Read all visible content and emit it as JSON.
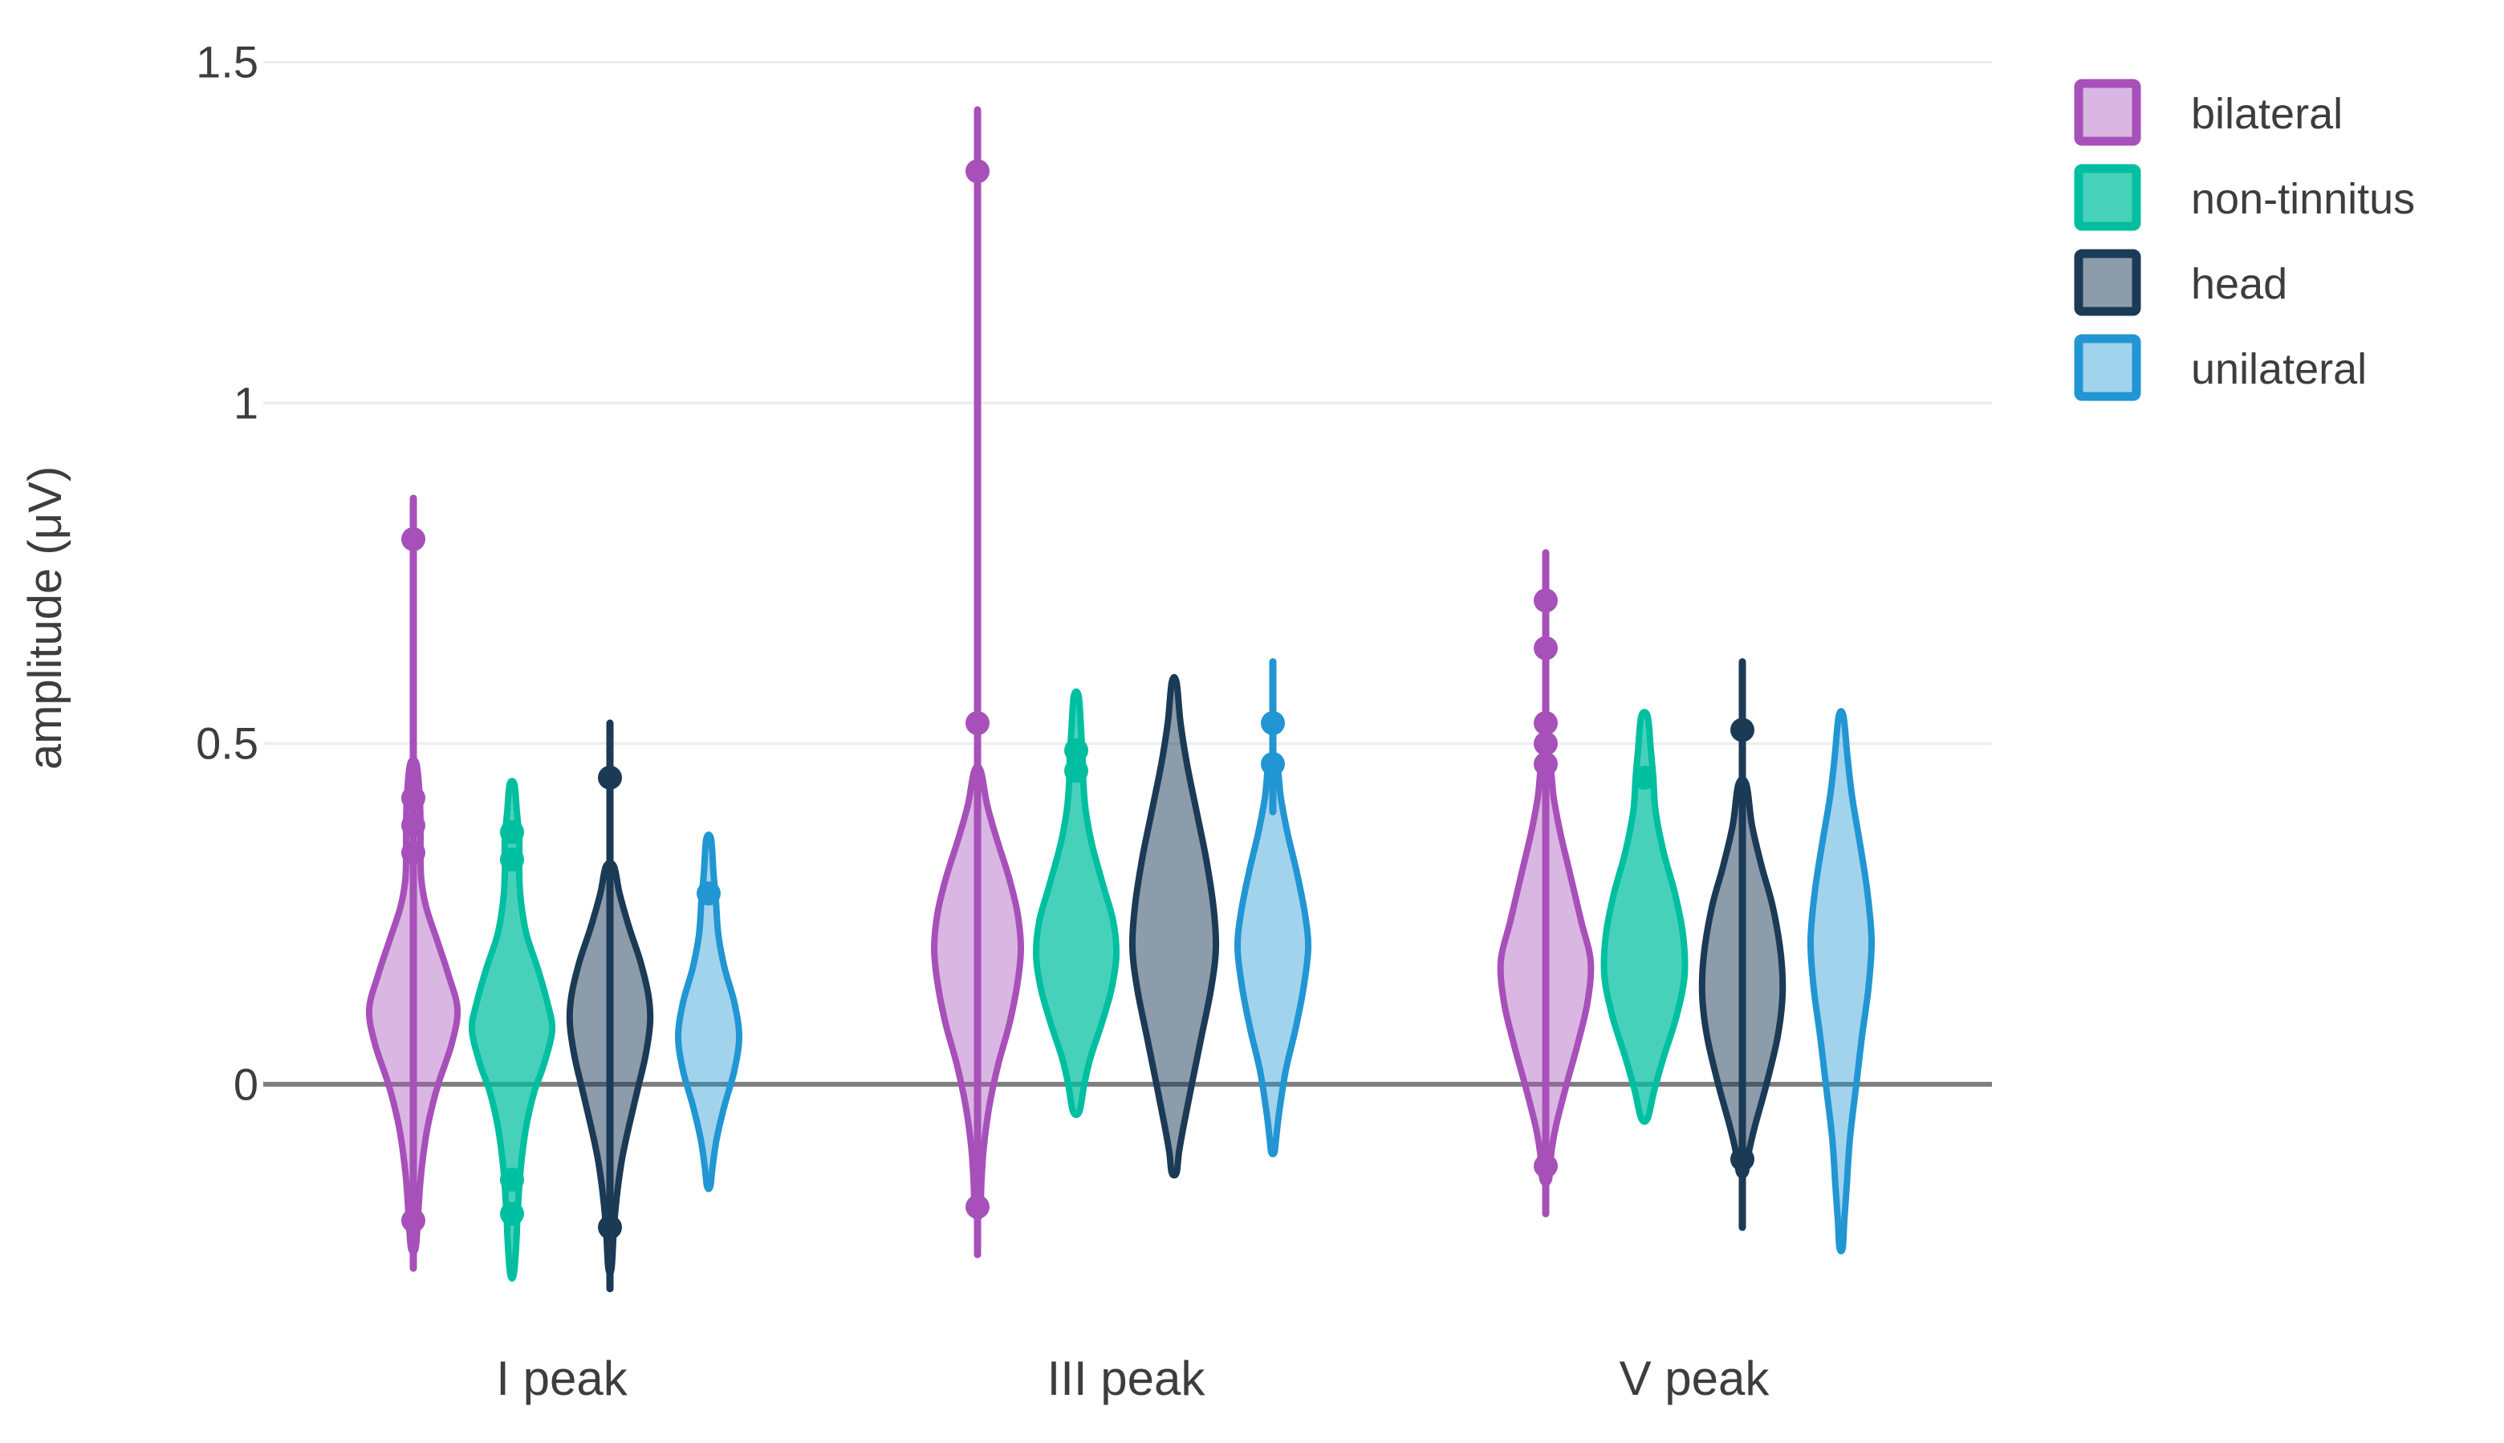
{
  "page": {
    "background": "#ffffff"
  },
  "chart_data": {
    "type": "violin",
    "title": "",
    "ylabel": "amplitude (μV)",
    "xlabel": "",
    "categories": [
      "I peak",
      "III peak",
      "V peak"
    ],
    "grid": true,
    "legend_position": "top-right",
    "ylim": [
      -0.35,
      1.55
    ],
    "zero_line": true,
    "yticks": [
      {
        "value": 1.5,
        "label": "1.5"
      },
      {
        "value": 1.0,
        "label": "1"
      },
      {
        "value": 0.5,
        "label": "0.5"
      },
      {
        "value": 0.0,
        "label": "0"
      }
    ],
    "legend": [
      {
        "label": "bilateral",
        "stroke": "#a750b9",
        "fill": "rgba(167,80,185,0.42)"
      },
      {
        "label": "non-tinnitus",
        "stroke": "#00bfa1",
        "fill": "rgba(0,191,161,0.72)"
      },
      {
        "label": "head",
        "stroke": "#1b3a56",
        "fill": "rgba(27,58,86,0.50)"
      },
      {
        "label": "unilateral",
        "stroke": "#2196d3",
        "fill": "rgba(33,150,211,0.42)"
      }
    ],
    "violins": [
      {
        "group": "I peak",
        "series": "bilateral",
        "whisker": [
          0.86,
          -0.27
        ],
        "dots": [
          0.8,
          0.42,
          0.38,
          0.34,
          -0.2
        ],
        "profile": [
          [
            0.47,
            4
          ],
          [
            0.42,
            8
          ],
          [
            0.38,
            9
          ],
          [
            0.34,
            9
          ],
          [
            0.3,
            10
          ],
          [
            0.26,
            16
          ],
          [
            0.21,
            30
          ],
          [
            0.16,
            44
          ],
          [
            0.11,
            55
          ],
          [
            0.06,
            48
          ],
          [
            0.0,
            31
          ],
          [
            -0.05,
            20
          ],
          [
            -0.09,
            14
          ],
          [
            -0.14,
            9
          ],
          [
            -0.19,
            6
          ],
          [
            -0.24,
            3
          ]
        ]
      },
      {
        "group": "I peak",
        "series": "non-tinnitus",
        "whisker": null,
        "dots": [
          0.37,
          0.33,
          -0.14,
          -0.19
        ],
        "profile": [
          [
            0.44,
            3
          ],
          [
            0.4,
            6
          ],
          [
            0.36,
            9
          ],
          [
            0.31,
            9
          ],
          [
            0.27,
            11
          ],
          [
            0.22,
            18
          ],
          [
            0.17,
            32
          ],
          [
            0.12,
            44
          ],
          [
            0.08,
            50
          ],
          [
            0.03,
            40
          ],
          [
            -0.01,
            28
          ],
          [
            -0.06,
            18
          ],
          [
            -0.11,
            12
          ],
          [
            -0.15,
            9
          ],
          [
            -0.19,
            7
          ],
          [
            -0.24,
            5
          ],
          [
            -0.28,
            2
          ]
        ]
      },
      {
        "group": "I peak",
        "series": "head",
        "whisker": [
          0.53,
          -0.3
        ],
        "dots": [
          0.45,
          -0.21
        ],
        "profile": [
          [
            0.32,
            5
          ],
          [
            0.28,
            12
          ],
          [
            0.23,
            24
          ],
          [
            0.18,
            38
          ],
          [
            0.13,
            48
          ],
          [
            0.09,
            50
          ],
          [
            0.04,
            44
          ],
          [
            -0.01,
            34
          ],
          [
            -0.06,
            24
          ],
          [
            -0.11,
            15
          ],
          [
            -0.16,
            9
          ],
          [
            -0.21,
            5
          ],
          [
            -0.27,
            2
          ]
        ]
      },
      {
        "group": "I peak",
        "series": "unilateral",
        "whisker": null,
        "dots": [
          0.28
        ],
        "profile": [
          [
            0.36,
            3
          ],
          [
            0.31,
            6
          ],
          [
            0.27,
            9
          ],
          [
            0.22,
            12
          ],
          [
            0.17,
            20
          ],
          [
            0.12,
            32
          ],
          [
            0.07,
            38
          ],
          [
            0.02,
            32
          ],
          [
            -0.03,
            20
          ],
          [
            -0.08,
            10
          ],
          [
            -0.12,
            5
          ],
          [
            -0.15,
            2
          ]
        ]
      },
      {
        "group": "III peak",
        "series": "bilateral",
        "whisker": [
          1.43,
          -0.25
        ],
        "dots": [
          1.34,
          0.53,
          -0.18
        ],
        "profile": [
          [
            0.46,
            4
          ],
          [
            0.41,
            12
          ],
          [
            0.36,
            24
          ],
          [
            0.3,
            40
          ],
          [
            0.25,
            50
          ],
          [
            0.2,
            54
          ],
          [
            0.15,
            50
          ],
          [
            0.09,
            40
          ],
          [
            0.03,
            26
          ],
          [
            -0.03,
            15
          ],
          [
            -0.09,
            8
          ],
          [
            -0.14,
            5
          ],
          [
            -0.19,
            3
          ]
        ]
      },
      {
        "group": "III peak",
        "series": "non-tinnitus",
        "whisker": null,
        "dots": [
          0.49,
          0.46
        ],
        "profile": [
          [
            0.57,
            3
          ],
          [
            0.52,
            6
          ],
          [
            0.48,
            8
          ],
          [
            0.44,
            9
          ],
          [
            0.4,
            12
          ],
          [
            0.35,
            20
          ],
          [
            0.29,
            34
          ],
          [
            0.24,
            46
          ],
          [
            0.19,
            50
          ],
          [
            0.14,
            44
          ],
          [
            0.09,
            32
          ],
          [
            0.04,
            18
          ],
          [
            0.0,
            10
          ],
          [
            -0.04,
            4
          ]
        ]
      },
      {
        "group": "III peak",
        "series": "head",
        "whisker": null,
        "dots": [],
        "profile": [
          [
            0.59,
            3
          ],
          [
            0.53,
            8
          ],
          [
            0.47,
            16
          ],
          [
            0.4,
            28
          ],
          [
            0.33,
            40
          ],
          [
            0.26,
            49
          ],
          [
            0.2,
            52
          ],
          [
            0.14,
            46
          ],
          [
            0.07,
            34
          ],
          [
            0.0,
            22
          ],
          [
            -0.06,
            12
          ],
          [
            -0.1,
            6
          ],
          [
            -0.13,
            3
          ]
        ]
      },
      {
        "group": "III peak",
        "series": "unilateral",
        "whisker": [
          0.62,
          0.4
        ],
        "dots": [
          0.53,
          0.47
        ],
        "profile": [
          [
            0.47,
            5
          ],
          [
            0.42,
            10
          ],
          [
            0.37,
            18
          ],
          [
            0.31,
            30
          ],
          [
            0.25,
            40
          ],
          [
            0.2,
            44
          ],
          [
            0.14,
            38
          ],
          [
            0.08,
            28
          ],
          [
            0.02,
            16
          ],
          [
            -0.04,
            8
          ],
          [
            -0.08,
            4
          ],
          [
            -0.1,
            2
          ]
        ]
      },
      {
        "group": "V peak",
        "series": "bilateral",
        "whisker": [
          0.78,
          -0.19
        ],
        "dots": [
          0.71,
          0.64,
          0.53,
          0.5,
          0.47,
          -0.12
        ],
        "profile": [
          [
            0.47,
            5
          ],
          [
            0.42,
            10
          ],
          [
            0.37,
            18
          ],
          [
            0.31,
            30
          ],
          [
            0.24,
            44
          ],
          [
            0.18,
            56
          ],
          [
            0.12,
            52
          ],
          [
            0.06,
            40
          ],
          [
            0.0,
            26
          ],
          [
            -0.06,
            13
          ],
          [
            -0.1,
            7
          ],
          [
            -0.14,
            4
          ]
        ]
      },
      {
        "group": "V peak",
        "series": "non-tinnitus",
        "whisker": null,
        "dots": [
          0.45
        ],
        "profile": [
          [
            0.54,
            4
          ],
          [
            0.49,
            8
          ],
          [
            0.45,
            11
          ],
          [
            0.4,
            14
          ],
          [
            0.34,
            24
          ],
          [
            0.28,
            38
          ],
          [
            0.22,
            48
          ],
          [
            0.16,
            50
          ],
          [
            0.1,
            40
          ],
          [
            0.04,
            24
          ],
          [
            -0.01,
            12
          ],
          [
            -0.05,
            4
          ]
        ]
      },
      {
        "group": "V peak",
        "series": "head",
        "whisker": [
          0.62,
          -0.21
        ],
        "dots": [
          0.52,
          -0.11
        ],
        "profile": [
          [
            0.44,
            5
          ],
          [
            0.38,
            12
          ],
          [
            0.32,
            24
          ],
          [
            0.26,
            38
          ],
          [
            0.19,
            48
          ],
          [
            0.13,
            50
          ],
          [
            0.07,
            44
          ],
          [
            0.0,
            30
          ],
          [
            -0.06,
            16
          ],
          [
            -0.1,
            8
          ],
          [
            -0.13,
            4
          ]
        ]
      },
      {
        "group": "V peak",
        "series": "unilateral",
        "whisker": null,
        "dots": [],
        "profile": [
          [
            0.54,
            3
          ],
          [
            0.48,
            8
          ],
          [
            0.42,
            14
          ],
          [
            0.35,
            24
          ],
          [
            0.28,
            33
          ],
          [
            0.21,
            38
          ],
          [
            0.14,
            34
          ],
          [
            0.07,
            26
          ],
          [
            0.0,
            19
          ],
          [
            -0.08,
            11
          ],
          [
            -0.15,
            7
          ],
          [
            -0.2,
            4
          ],
          [
            -0.24,
            2
          ]
        ]
      }
    ]
  }
}
